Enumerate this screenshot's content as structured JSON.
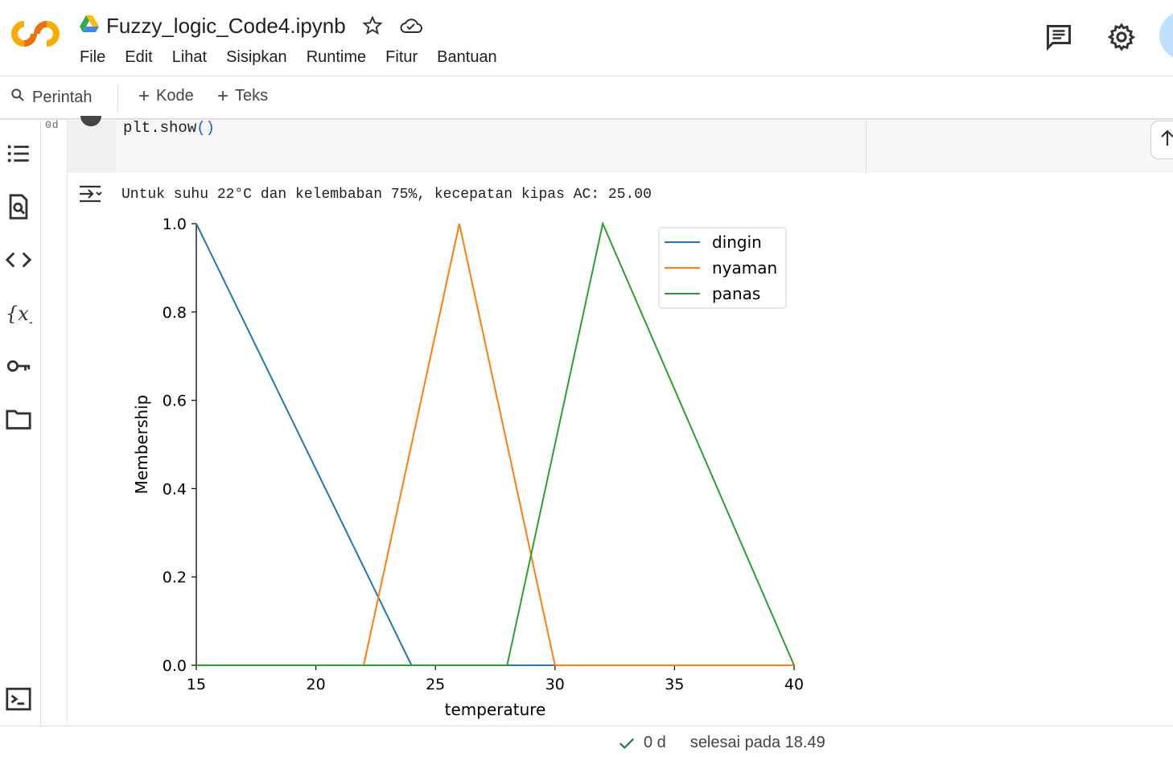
{
  "header": {
    "title": "Fuzzy_logic_Code4.ipynb",
    "menu": [
      "File",
      "Edit",
      "Lihat",
      "Sisipkan",
      "Runtime",
      "Fitur",
      "Bantuan"
    ]
  },
  "toolbar": {
    "command_label": "Perintah",
    "add_code_label": "Kode",
    "add_text_label": "Teks"
  },
  "cell": {
    "exec_time": "0d",
    "code_fn": "plt.show",
    "code_parens": "()"
  },
  "output": {
    "text": "Untuk suhu 22°C dan kelembaban 75%, kecepatan kipas AC: 25.00"
  },
  "chart_data": {
    "type": "line",
    "xlabel": "temperature",
    "ylabel": "Membership",
    "xlim": [
      15,
      40
    ],
    "ylim": [
      0,
      1.0
    ],
    "xticks": [
      "15",
      "20",
      "25",
      "30",
      "35",
      "40"
    ],
    "yticks": [
      "0.0",
      "0.2",
      "0.4",
      "0.6",
      "0.8",
      "1.0"
    ],
    "legend_position": "top-right",
    "series": [
      {
        "name": "dingin",
        "color": "#1f77b4",
        "x": [
          15,
          24,
          40
        ],
        "y": [
          1,
          0,
          0
        ]
      },
      {
        "name": "nyaman",
        "color": "#ff7f0e",
        "x": [
          15,
          22,
          26,
          30,
          40
        ],
        "y": [
          0,
          0,
          1,
          0,
          0
        ]
      },
      {
        "name": "panas",
        "color": "#2ca02c",
        "x": [
          15,
          28,
          32,
          40
        ],
        "y": [
          0,
          0,
          1,
          0
        ]
      }
    ]
  },
  "status": {
    "time": "0 d",
    "text": "selesai pada 18.49"
  }
}
